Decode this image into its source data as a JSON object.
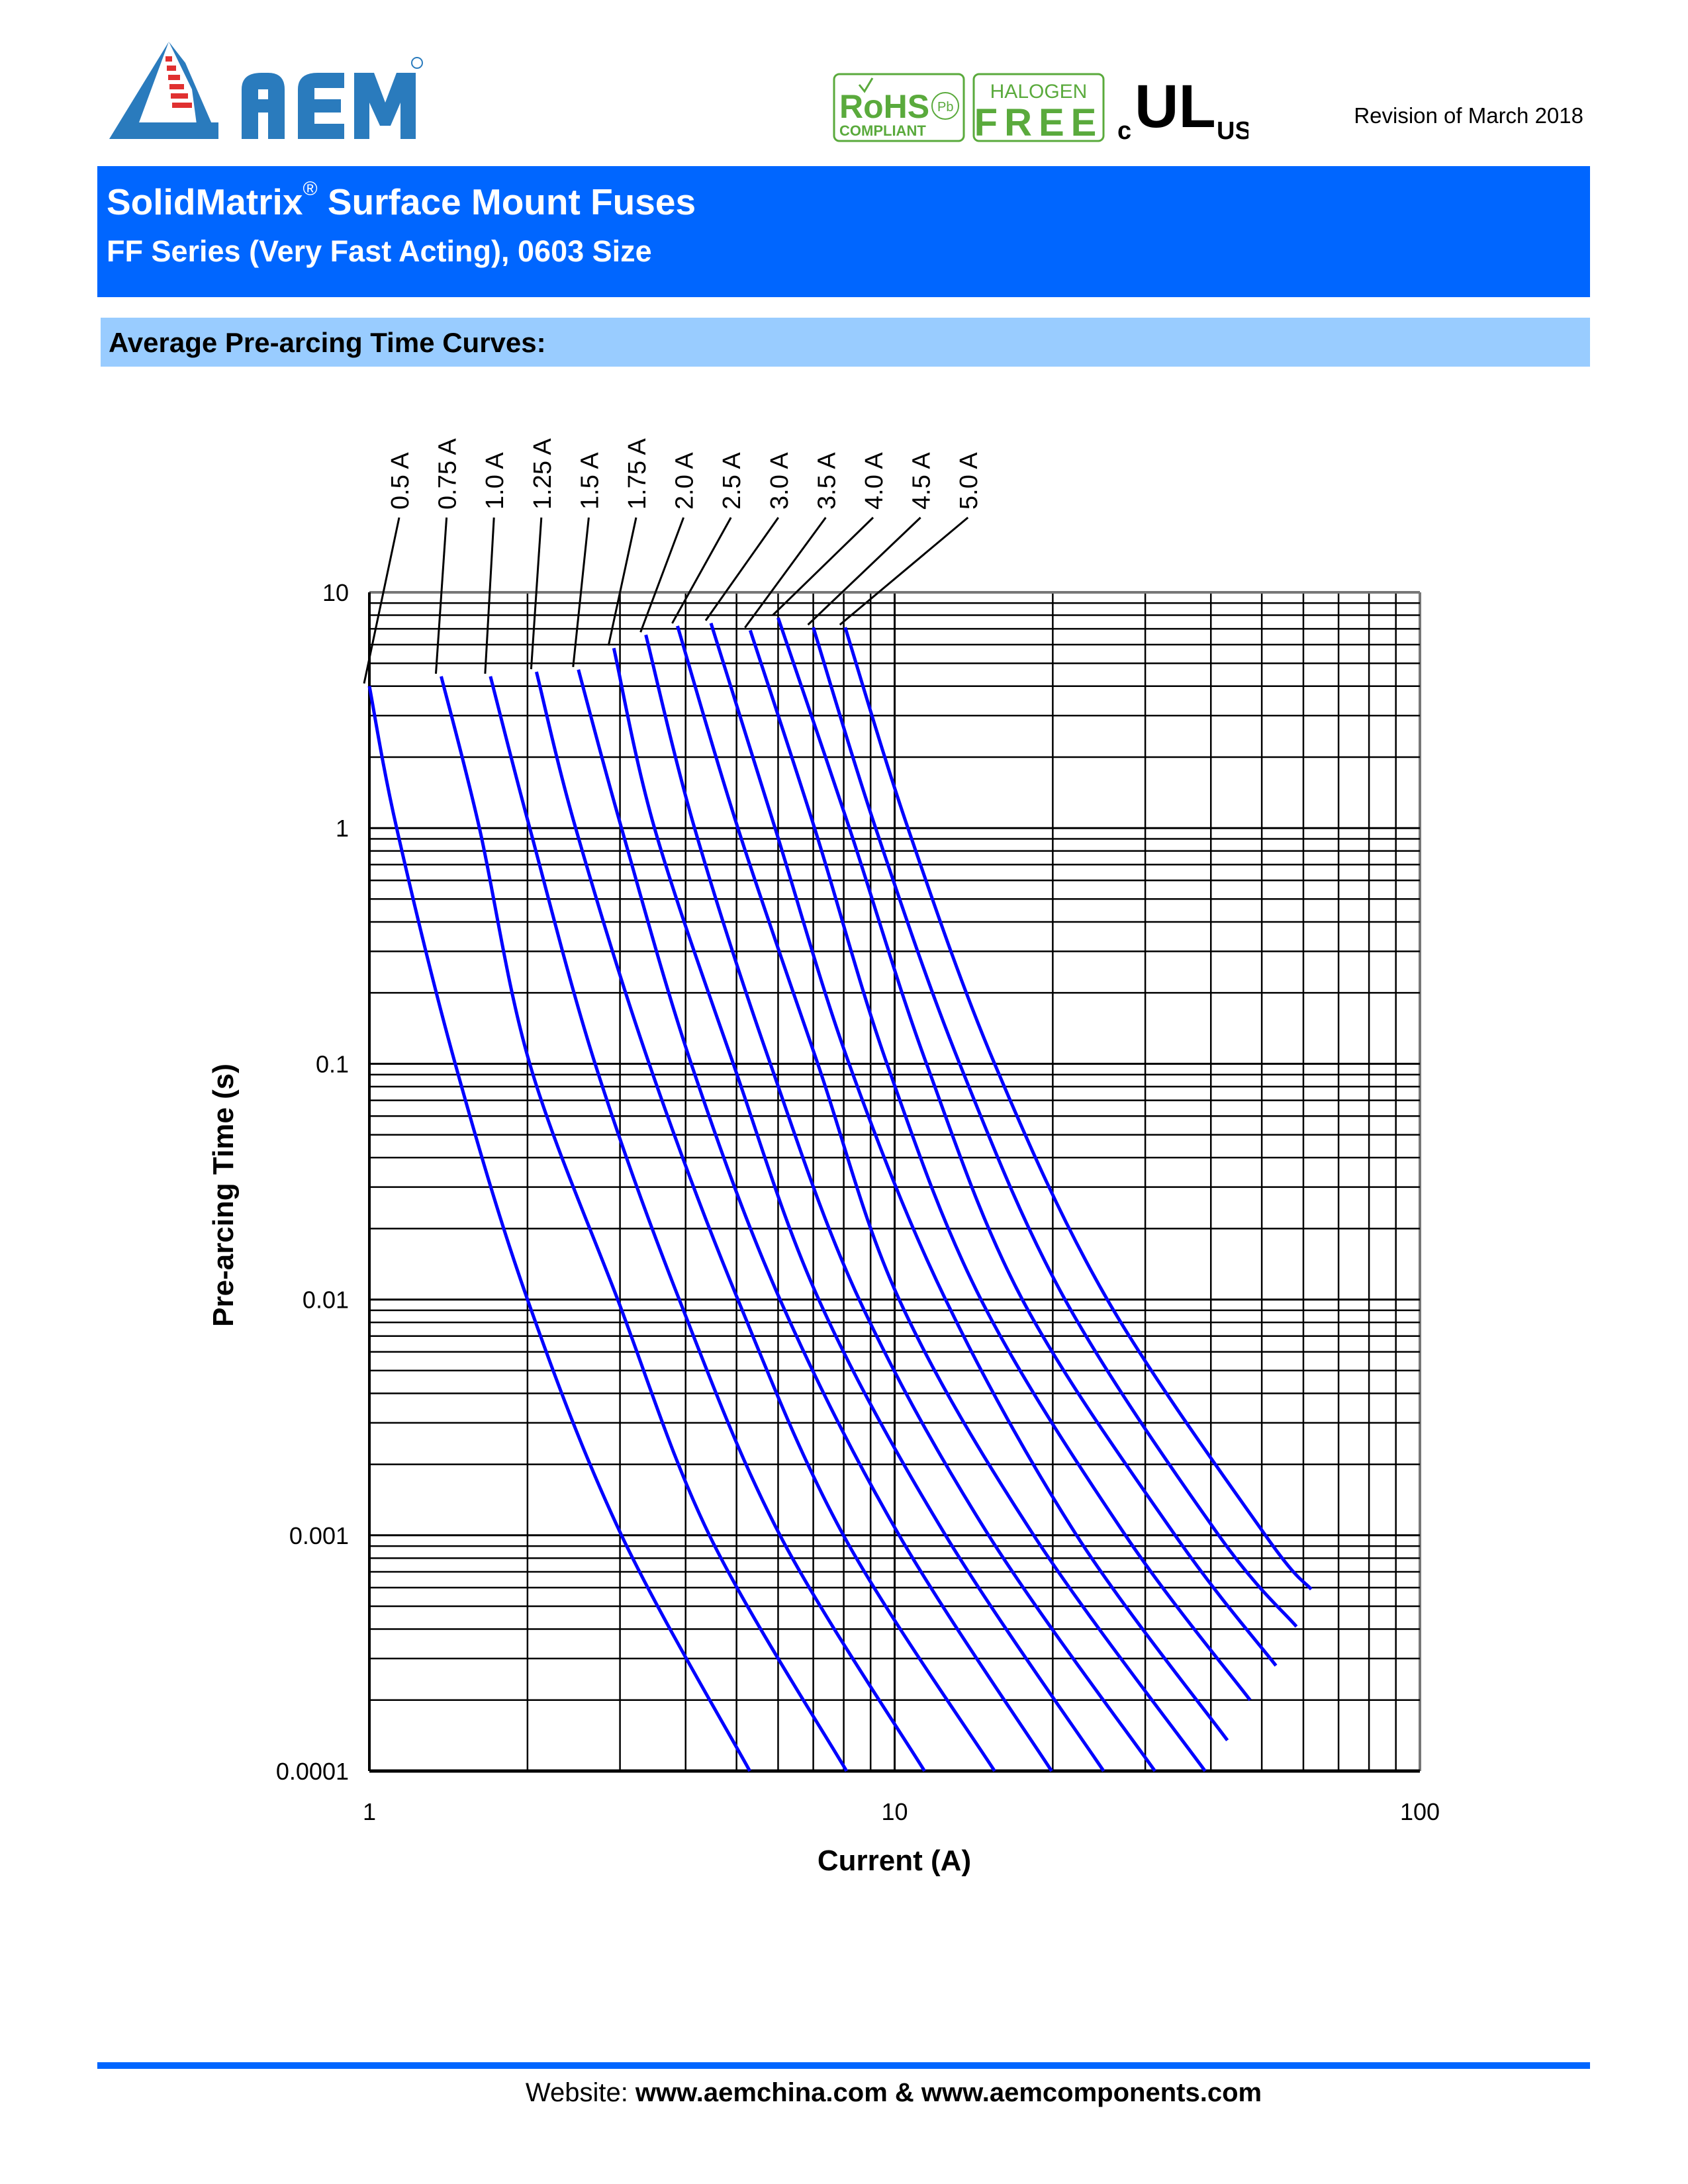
{
  "header": {
    "logo_text": "AEM",
    "badges": {
      "rohs": [
        "RoHS",
        "COMPLIANT",
        "Pb"
      ],
      "halogen_free": [
        "HALOGEN",
        "FREE"
      ],
      "ul": [
        "c",
        "UL",
        "us"
      ]
    },
    "revision": "Revision of March 2018"
  },
  "banner": {
    "title": "SolidMatrix",
    "title_mark": "®",
    "title_rest": " Surface Mount Fuses",
    "subtitle": "FF Series (Very Fast Acting), 0603 Size"
  },
  "section": {
    "title": "Average Pre-arcing Time Curves:"
  },
  "chart_data": {
    "type": "line",
    "title": "",
    "xlabel": "Current (A)",
    "ylabel": "Pre-arcing Time (s)",
    "x_scale": "log",
    "y_scale": "log",
    "xlim": [
      1,
      100
    ],
    "ylim": [
      0.0001,
      10
    ],
    "x_ticks": [
      "1",
      "10",
      "100"
    ],
    "y_ticks": [
      "10",
      "1",
      "0.1",
      "0.01",
      "0.001",
      "0.0001"
    ],
    "grid": true,
    "line_color": "#0000ff",
    "series": [
      {
        "name": "0.5 A",
        "points": [
          [
            1,
            4.0
          ],
          [
            1.127,
            1
          ],
          [
            1.457,
            0.1
          ],
          [
            2.0,
            0.01
          ],
          [
            3.02,
            0.001
          ],
          [
            5.3,
            0.0001
          ]
        ]
      },
      {
        "name": "0.75 A",
        "points": [
          [
            1.37,
            4.4
          ],
          [
            1.62,
            1
          ],
          [
            2.02,
            0.1
          ],
          [
            2.97,
            0.01
          ],
          [
            4.44,
            0.001
          ],
          [
            8.1,
            0.0001
          ]
        ]
      },
      {
        "name": "1.0 A",
        "points": [
          [
            1.7,
            4.4
          ],
          [
            2.02,
            1
          ],
          [
            2.69,
            0.1
          ],
          [
            3.89,
            0.01
          ],
          [
            6.05,
            0.001
          ],
          [
            11.4,
            0.0001
          ]
        ]
      },
      {
        "name": "1.25 A",
        "points": [
          [
            2.08,
            4.6
          ],
          [
            2.47,
            1
          ],
          [
            3.41,
            0.1
          ],
          [
            5.03,
            0.01
          ],
          [
            7.99,
            0.001
          ],
          [
            15.5,
            0.0001
          ]
        ]
      },
      {
        "name": "1.5 A",
        "points": [
          [
            2.5,
            4.7
          ],
          [
            3.02,
            1
          ],
          [
            4.1,
            0.1
          ],
          [
            6.05,
            0.01
          ],
          [
            10.2,
            0.001
          ],
          [
            19.9,
            0.0001
          ]
        ]
      },
      {
        "name": "1.75 A",
        "points": [
          [
            2.92,
            5.8
          ],
          [
            3.49,
            1
          ],
          [
            4.93,
            0.1
          ],
          [
            7.17,
            0.01
          ],
          [
            12.5,
            0.001
          ],
          [
            25.0,
            0.0001
          ]
        ]
      },
      {
        "name": "2.0 A",
        "points": [
          [
            3.36,
            6.6
          ],
          [
            4.16,
            1
          ],
          [
            5.8,
            0.1
          ],
          [
            8.56,
            0.01
          ],
          [
            15.1,
            0.001
          ],
          [
            31.3,
            0.0001
          ]
        ]
      },
      {
        "name": "2.5 A",
        "points": [
          [
            3.86,
            7.2
          ],
          [
            5.03,
            1
          ],
          [
            7.14,
            0.1
          ],
          [
            10.2,
            0.01
          ],
          [
            18.4,
            0.001
          ],
          [
            39.0,
            0.0001
          ]
        ]
      },
      {
        "name": "3.0 A",
        "points": [
          [
            4.47,
            7.4
          ],
          [
            5.92,
            1
          ],
          [
            8.19,
            0.1
          ],
          [
            12.5,
            0.01
          ],
          [
            22.2,
            0.001
          ],
          [
            43.0,
            0.000135
          ]
        ]
      },
      {
        "name": "3.5 A",
        "points": [
          [
            5.31,
            6.9
          ],
          [
            7.04,
            1
          ],
          [
            9.67,
            0.1
          ],
          [
            14.6,
            0.01
          ],
          [
            27.5,
            0.001
          ],
          [
            47.5,
            0.0002
          ]
        ]
      },
      {
        "name": "4.0 A",
        "points": [
          [
            6.0,
            7.8
          ],
          [
            8.2,
            1
          ],
          [
            11.5,
            0.1
          ],
          [
            17.5,
            0.01
          ],
          [
            34.2,
            0.001
          ],
          [
            53.2,
            0.00028
          ]
        ]
      },
      {
        "name": "4.5 A",
        "points": [
          [
            7.0,
            7.1
          ],
          [
            9.2,
            1
          ],
          [
            13.3,
            0.1
          ],
          [
            21.1,
            0.01
          ],
          [
            41.4,
            0.001
          ],
          [
            58.2,
            0.00041
          ]
        ]
      },
      {
        "name": "5.0 A",
        "points": [
          [
            8.05,
            7.1
          ],
          [
            10.6,
            1
          ],
          [
            15.5,
            0.1
          ],
          [
            25.4,
            0.01
          ],
          [
            50.8,
            0.001
          ],
          [
            62.1,
            0.00059
          ]
        ]
      }
    ]
  },
  "footer": {
    "label": "Website: ",
    "sites": "www.aemchina.com & www.aemcomponents.com"
  }
}
